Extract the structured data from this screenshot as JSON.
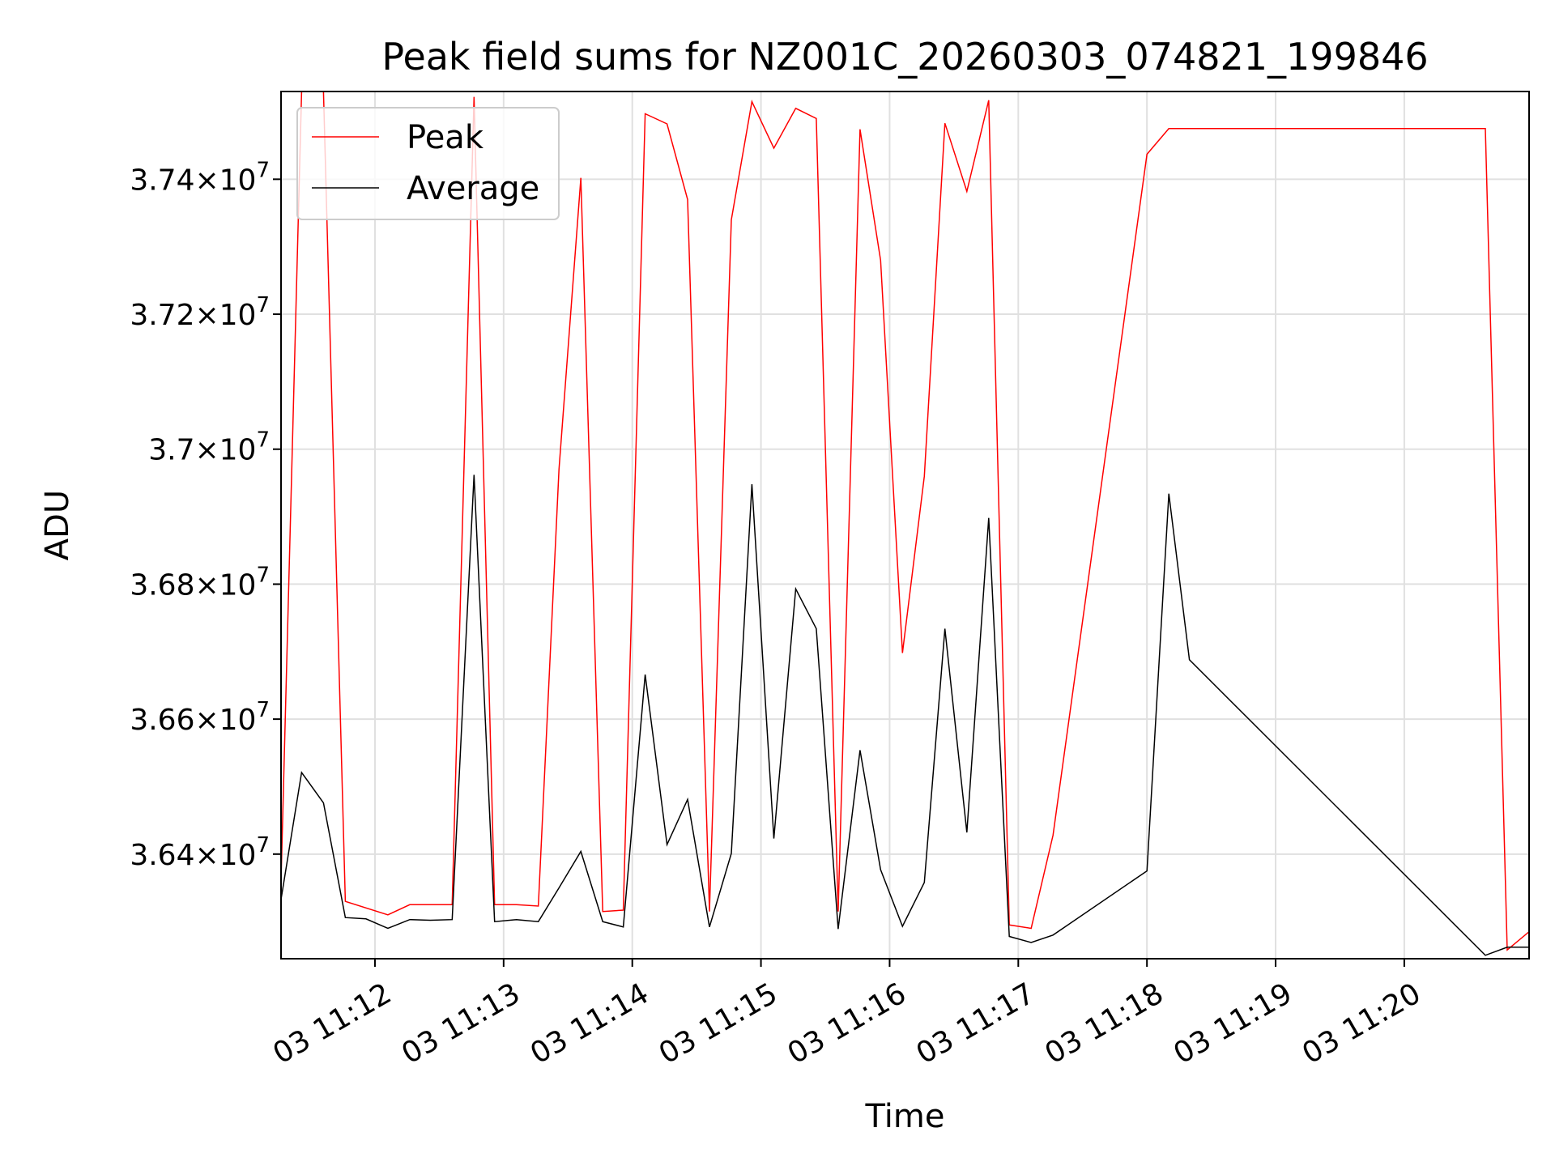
{
  "chart_data": {
    "type": "line",
    "title": "Peak field sums for NZ001C_20260303_074821_199846",
    "xlabel": "Time",
    "ylabel": "ADU",
    "grid": true,
    "legend_position": "top-left",
    "ylim": [
      36245000,
      37530000
    ],
    "y_ticks": [
      {
        "value": 36400000,
        "mantissa": "3.64",
        "exp": "7"
      },
      {
        "value": 36600000,
        "mantissa": "3.66",
        "exp": "7"
      },
      {
        "value": 36800000,
        "mantissa": "3.68",
        "exp": "7"
      },
      {
        "value": 37000000,
        "mantissa": "3.7",
        "exp": "7"
      },
      {
        "value": 37200000,
        "mantissa": "3.72",
        "exp": "7"
      },
      {
        "value": 37400000,
        "mantissa": "3.74",
        "exp": "7"
      }
    ],
    "x_unit": "minutes since 03 11:00",
    "xlim": [
      11.27,
      20.97
    ],
    "x_ticks": [
      {
        "value": 12,
        "label": "03 11:12"
      },
      {
        "value": 13,
        "label": "03 11:13"
      },
      {
        "value": 14,
        "label": "03 11:14"
      },
      {
        "value": 15,
        "label": "03 11:15"
      },
      {
        "value": 16,
        "label": "03 11:16"
      },
      {
        "value": 17,
        "label": "03 11:17"
      },
      {
        "value": 18,
        "label": "03 11:18"
      },
      {
        "value": 19,
        "label": "03 11:19"
      },
      {
        "value": 20,
        "label": "03 11:20"
      }
    ],
    "series": [
      {
        "name": "Peak",
        "color": "#ff0000",
        "x": [
          11.27,
          11.43,
          11.6,
          11.77,
          12.1,
          12.27,
          12.43,
          12.6,
          12.77,
          12.93,
          13.1,
          13.27,
          13.43,
          13.6,
          13.77,
          13.93,
          14.1,
          14.27,
          14.43,
          14.6,
          14.77,
          14.93,
          15.1,
          15.27,
          15.43,
          15.6,
          15.77,
          15.93,
          16.1,
          16.27,
          16.43,
          16.6,
          16.77,
          16.93,
          17.1,
          17.27,
          18.0,
          18.17,
          18.33,
          20.63,
          20.8,
          20.97
        ],
        "values": [
          36360000,
          37530000,
          37530000,
          36330000,
          36310000,
          36325000,
          36325000,
          36325000,
          37522000,
          36325000,
          36325000,
          36323000,
          36970000,
          37402000,
          36315000,
          36317000,
          37497000,
          37482000,
          37370000,
          36315000,
          37340000,
          37515000,
          37446000,
          37505000,
          37490000,
          36315000,
          37474000,
          37280000,
          36698000,
          36960000,
          37483000,
          37382000,
          37517000,
          36295000,
          36290000,
          36428000,
          37437000,
          37475000,
          37475000,
          37475000,
          36258000,
          36285000
        ]
      },
      {
        "name": "Average",
        "color": "#000000",
        "x": [
          11.27,
          11.43,
          11.6,
          11.77,
          11.93,
          12.1,
          12.27,
          12.43,
          12.6,
          12.77,
          12.93,
          13.1,
          13.27,
          13.43,
          13.6,
          13.77,
          13.93,
          14.1,
          14.27,
          14.43,
          14.6,
          14.77,
          14.93,
          15.1,
          15.27,
          15.43,
          15.6,
          15.77,
          15.93,
          16.1,
          16.27,
          16.43,
          16.6,
          16.77,
          16.93,
          17.1,
          17.27,
          18.0,
          18.17,
          18.33,
          20.63,
          20.8,
          20.97
        ],
        "values": [
          36333000,
          36521000,
          36476000,
          36306000,
          36304000,
          36290000,
          36303000,
          36302000,
          36303000,
          36962000,
          36300000,
          36303000,
          36300000,
          36350000,
          36404000,
          36300000,
          36292000,
          36666000,
          36414000,
          36481000,
          36292000,
          36401000,
          36948000,
          36423000,
          36793000,
          36734000,
          36289000,
          36554000,
          36377000,
          36293000,
          36358000,
          36734000,
          36432000,
          36898000,
          36278000,
          36269000,
          36280000,
          36375000,
          36934000,
          36688000,
          36250000,
          36262000,
          36262000
        ]
      }
    ]
  }
}
